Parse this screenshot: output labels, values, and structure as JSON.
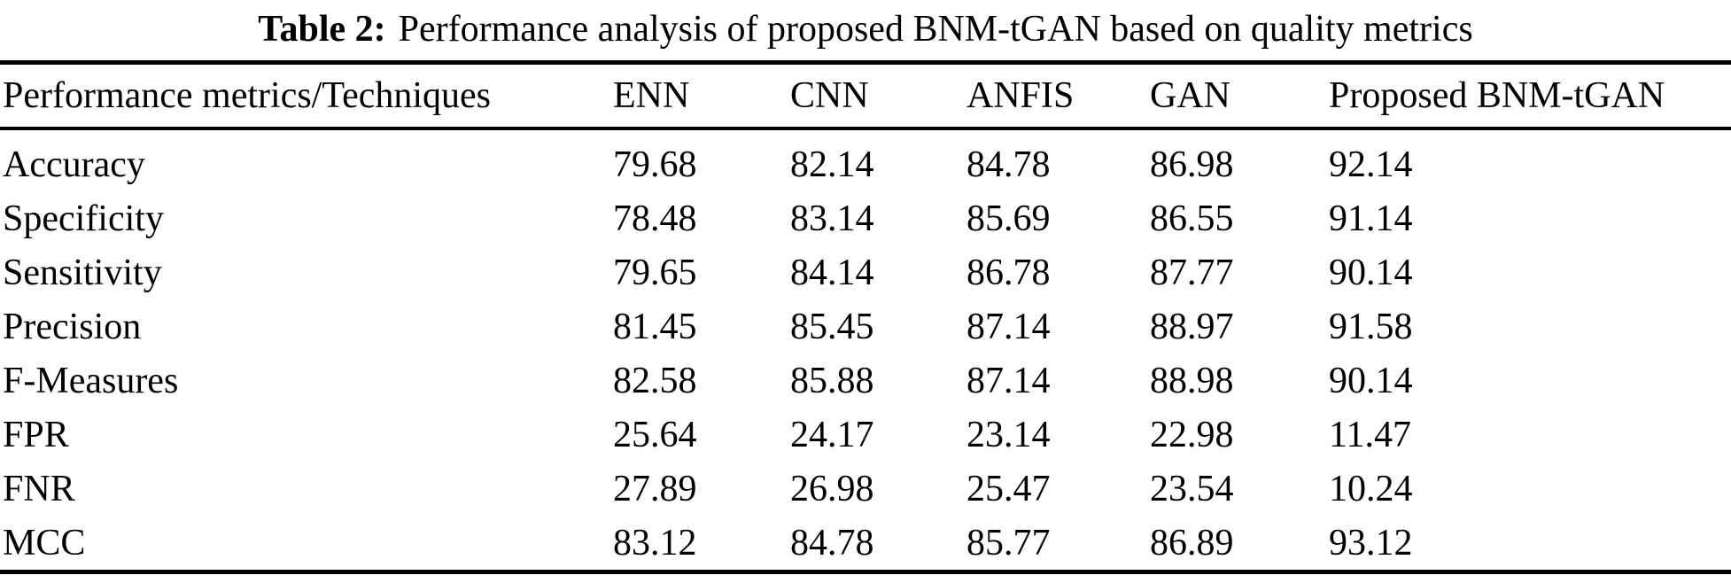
{
  "caption": {
    "label": "Table 2:",
    "text": "Performance analysis of proposed BNM-tGAN based on quality metrics"
  },
  "table": {
    "columns": [
      "Performance metrics/Techniques",
      "ENN",
      "CNN",
      "ANFIS",
      "GAN",
      "Proposed BNM-tGAN"
    ],
    "rows": [
      {
        "metric": "Accuracy",
        "values": [
          "79.68",
          "82.14",
          "84.78",
          "86.98",
          "92.14"
        ]
      },
      {
        "metric": "Specificity",
        "values": [
          "78.48",
          "83.14",
          "85.69",
          "86.55",
          "91.14"
        ]
      },
      {
        "metric": "Sensitivity",
        "values": [
          "79.65",
          "84.14",
          "86.78",
          "87.77",
          "90.14"
        ]
      },
      {
        "metric": "Precision",
        "values": [
          "81.45",
          "85.45",
          "87.14",
          "88.97",
          "91.58"
        ]
      },
      {
        "metric": "F-Measures",
        "values": [
          "82.58",
          "85.88",
          "87.14",
          "88.98",
          "90.14"
        ]
      },
      {
        "metric": "FPR",
        "values": [
          "25.64",
          "24.17",
          "23.14",
          "22.98",
          "11.47"
        ]
      },
      {
        "metric": "FNR",
        "values": [
          "27.89",
          "26.98",
          "25.47",
          "23.54",
          "10.24"
        ]
      },
      {
        "metric": "MCC",
        "values": [
          "83.12",
          "84.78",
          "85.77",
          "86.89",
          "93.12"
        ]
      }
    ]
  },
  "colors": {
    "text": "#000000",
    "background": "#ffffff",
    "rule": "#000000"
  }
}
